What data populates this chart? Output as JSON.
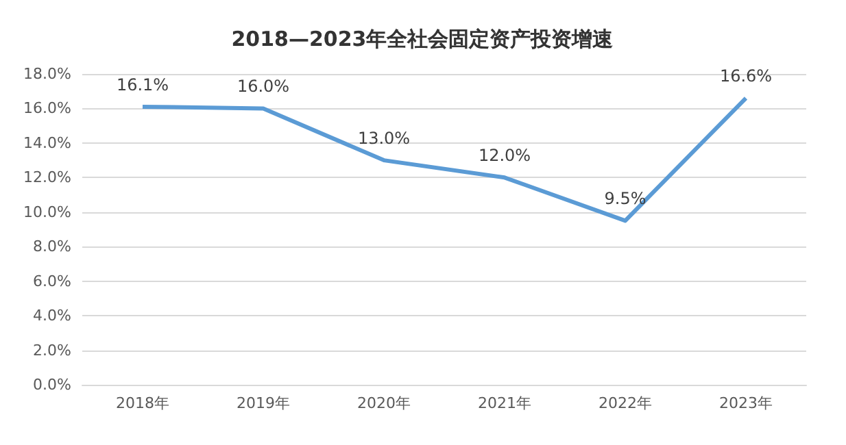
{
  "chart_data": {
    "type": "line",
    "title": "2018—2023年全社会固定资产投资增速",
    "categories": [
      "2018年",
      "2019年",
      "2020年",
      "2021年",
      "2022年",
      "2023年"
    ],
    "series": [
      {
        "color": "#5b9bd5",
        "values": [
          16.1,
          16.0,
          13.0,
          12.0,
          9.5,
          16.6
        ],
        "value_labels": [
          "16.1%",
          "16.0%",
          "13.0%",
          "12.0%",
          "9.5%",
          "16.6%"
        ]
      }
    ],
    "ylim": [
      0,
      18
    ],
    "yticks": [
      {
        "value": 0,
        "label": "0.0%"
      },
      {
        "value": 2,
        "label": "2.0%"
      },
      {
        "value": 4,
        "label": "4.0%"
      },
      {
        "value": 6,
        "label": "6.0%"
      },
      {
        "value": 8,
        "label": "8.0%"
      },
      {
        "value": 10,
        "label": "10.0%"
      },
      {
        "value": 12,
        "label": "12.0%"
      },
      {
        "value": 14,
        "label": "14.0%"
      },
      {
        "value": 16,
        "label": "16.0%"
      },
      {
        "value": 18,
        "label": "18.0%"
      }
    ],
    "grid": "y"
  }
}
